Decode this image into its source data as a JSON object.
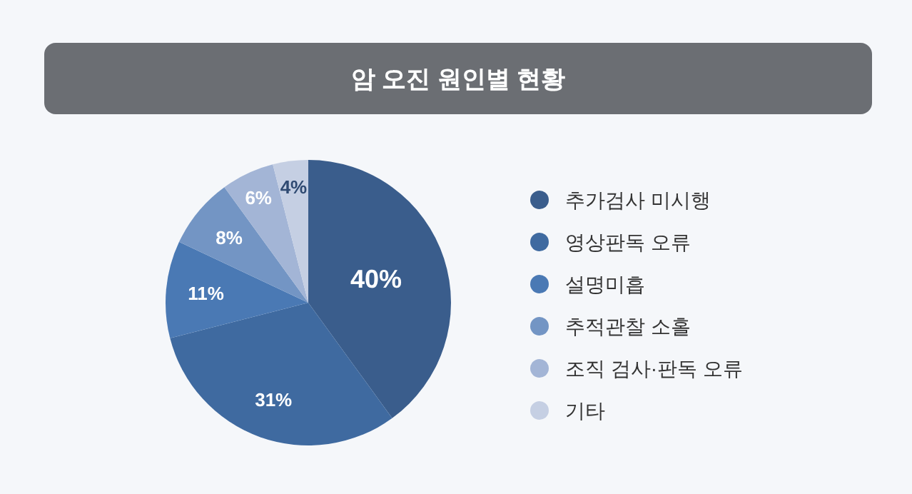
{
  "chart_data": {
    "type": "pie",
    "title": "암 오진 원인별 현황",
    "categories": [
      "추가검사 미시행",
      "영상판독 오류",
      "설명미흡",
      "추적관찰 소홀",
      "조직 검사·판독 오류",
      "기타"
    ],
    "values": [
      40,
      31,
      11,
      8,
      6,
      4
    ],
    "colors": [
      "#3a5d8c",
      "#3f6aa0",
      "#4a79b4",
      "#7395c4",
      "#a3b5d6",
      "#c5cfe3"
    ],
    "value_labels": [
      "40%",
      "31%",
      "11%",
      "8%",
      "6%",
      "4%"
    ],
    "legend": "right"
  }
}
